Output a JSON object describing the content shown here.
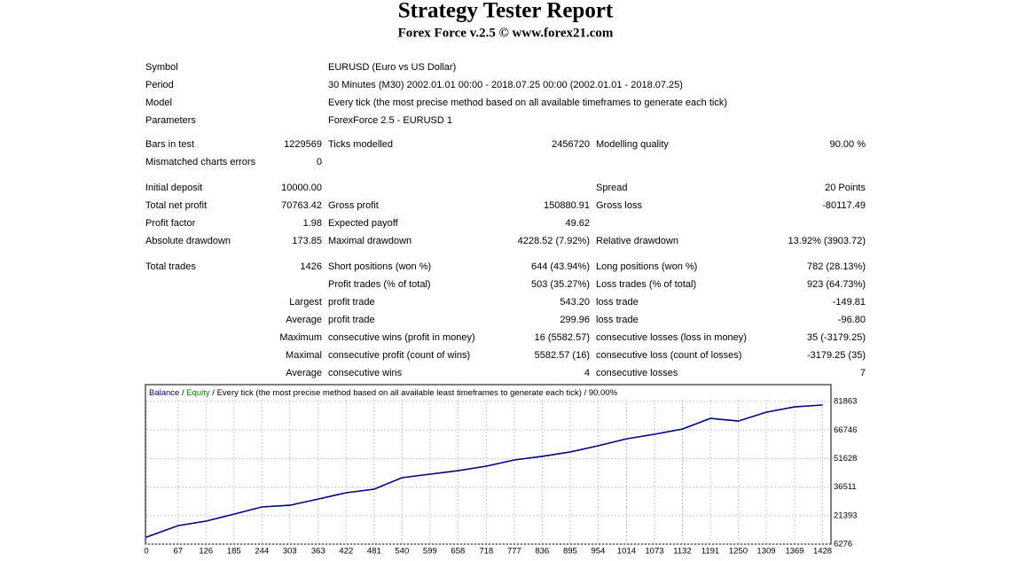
{
  "header": {
    "title": "Strategy Tester Report",
    "subtitle": "Forex Force v.2.5 © www.forex21.com"
  },
  "report": {
    "rows": [
      [
        "Symbol",
        "EURUSD (Euro vs US Dollar)"
      ],
      [
        "Period",
        "30 Minutes (M30) 2002.01.01 00:00 - 2018.07.25 00:00 (2002.01.01 - 2018.07.25)"
      ],
      [
        "Model",
        "Every tick (the most precise method based on all available timeframes to generate each tick)"
      ],
      [
        "Parameters",
        "ForexForce 2.5 - EURUSD 1"
      ],
      [
        "Bars in test",
        "1229569",
        "Ticks modelled",
        "2456720",
        "Modelling quality",
        "90.00 %"
      ],
      [
        "Mismatched charts errors",
        "0",
        null,
        null,
        null,
        null
      ],
      [
        "Initial deposit",
        "10000.00",
        null,
        null,
        "Spread",
        "20 Points"
      ],
      [
        "Total net profit",
        "70763.42",
        "Gross profit",
        "150880.91",
        "Gross loss",
        "-80117.49"
      ],
      [
        "Profit factor",
        "1.98",
        "Expected payoff",
        "49.62",
        null,
        null
      ],
      [
        "Absolute drawdown",
        "173.85",
        "Maximal drawdown",
        "4228.52 (7.92%)",
        "Relative drawdown",
        "13.92% (3903.72)"
      ],
      [
        "Total trades",
        "1426",
        "Short positions (won %)",
        "644 (43.94%)",
        "Long positions (won %)",
        "782 (28.13%)"
      ],
      [
        null,
        null,
        "Profit trades (% of total)",
        "503 (35.27%)",
        "Loss trades (% of total)",
        "923 (64.73%)"
      ],
      [
        null,
        "Largest",
        "profit trade",
        "543.20",
        "loss trade",
        "-149.81"
      ],
      [
        null,
        "Average",
        "profit trade",
        "299.96",
        "loss trade",
        "-96.80"
      ],
      [
        null,
        "Maximum",
        "consecutive wins (profit in money)",
        "16 (5582.57)",
        "consecutive losses (loss in money)",
        "35 (-3179.25)"
      ],
      [
        null,
        "Maximal",
        "consecutive profit (count of wins)",
        "5582.57 (16)",
        "consecutive loss (count of losses)",
        "-3179.25 (35)"
      ],
      [
        null,
        "Average",
        "consecutive wins",
        "4",
        "consecutive losses",
        "7"
      ]
    ]
  },
  "chart_data": {
    "type": "line",
    "title": " / Every tick (the most precise method based on all available least timeframes to generate each tick)",
    "subtitle": " / 90.00%",
    "x": [
      0,
      67,
      126,
      185,
      244,
      303,
      363,
      422,
      481,
      540,
      599,
      658,
      718,
      777,
      836,
      895,
      954,
      1014,
      1073,
      1132,
      1191,
      1250,
      1309,
      1369,
      1428
    ],
    "series": [
      {
        "name": "Equity",
        "color": "#008000",
        "values": [
          10000,
          16100,
          18500,
          22200,
          26000,
          26900,
          30200,
          33500,
          35400,
          41500,
          43400,
          45200,
          47600,
          50900,
          52800,
          55100,
          58400,
          62100,
          64500,
          67300,
          72900,
          71500,
          76200,
          79000,
          80000
        ]
      },
      {
        "name": "Balance",
        "color": "#000080",
        "values": [
          10000,
          16100,
          18500,
          22200,
          26000,
          26900,
          30200,
          33500,
          35400,
          41500,
          43400,
          45200,
          47600,
          50900,
          52800,
          55100,
          58400,
          62100,
          64500,
          67300,
          72900,
          71500,
          76200,
          79000,
          80000
        ]
      }
    ],
    "xlim": [
      0,
      1442
    ],
    "ylim": [
      6276,
      89400
    ],
    "xticks": [
      0,
      67,
      126,
      185,
      244,
      303,
      363,
      422,
      481,
      540,
      599,
      658,
      718,
      777,
      836,
      895,
      954,
      1014,
      1073,
      1132,
      1191,
      1250,
      1309,
      1369,
      1428
    ],
    "yticks": [
      6276,
      {
        "value": 21393.5,
        "label": "21393"
      },
      36511,
      {
        "value": 51628.5,
        "label": "51628"
      },
      66746,
      81863
    ],
    "grid": true
  }
}
